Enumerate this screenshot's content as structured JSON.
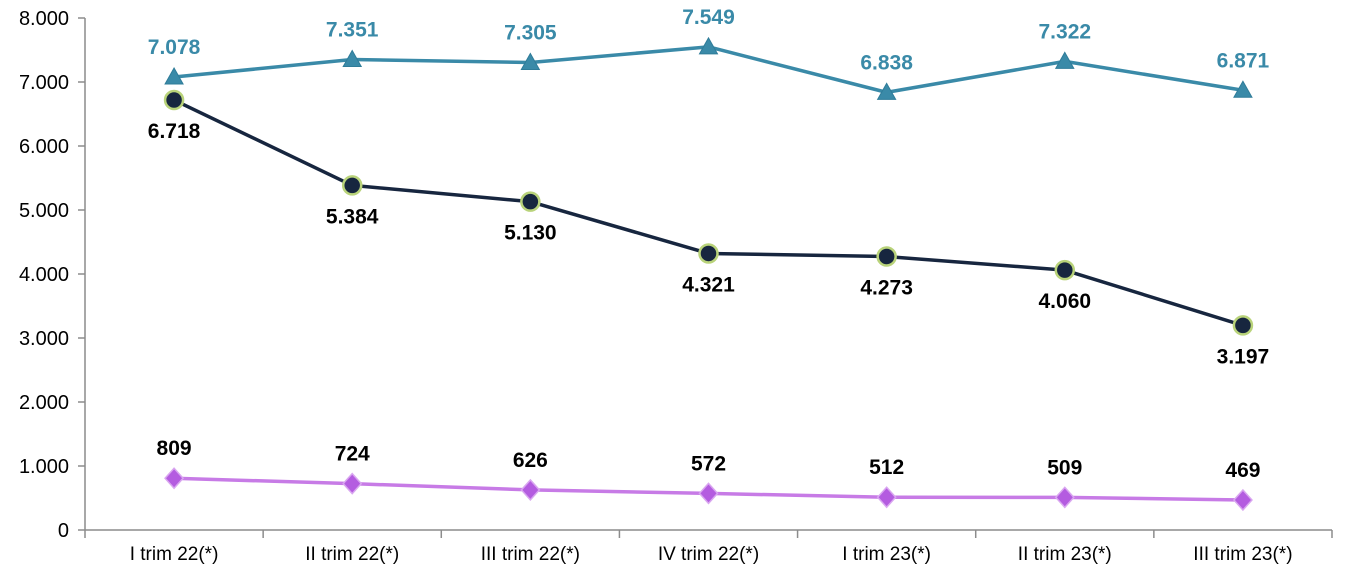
{
  "chart_data": {
    "type": "line",
    "title": "",
    "xlabel": "",
    "ylabel": "",
    "ylim": [
      0,
      8000
    ],
    "yticks": [
      {
        "value": 0,
        "label": "0"
      },
      {
        "value": 1000,
        "label": "1.000"
      },
      {
        "value": 2000,
        "label": "2.000"
      },
      {
        "value": 3000,
        "label": "3.000"
      },
      {
        "value": 4000,
        "label": "4.000"
      },
      {
        "value": 5000,
        "label": "5.000"
      },
      {
        "value": 6000,
        "label": "6.000"
      },
      {
        "value": 7000,
        "label": "7.000"
      },
      {
        "value": 8000,
        "label": "8.000"
      }
    ],
    "grid": false,
    "legend": "none",
    "categories": [
      "I trim 22(*)",
      "II trim 22(*)",
      "III trim 22(*)",
      "IV trim 22(*)",
      "I trim 23(*)",
      "II trim 23(*)",
      "III trim 23(*)"
    ],
    "series": [
      {
        "marker": "triangle",
        "color": "#3a8aa8",
        "label_color": "#3a8aa8",
        "label_position": "above",
        "values": [
          7078,
          7351,
          7305,
          7549,
          6838,
          7322,
          6871
        ],
        "labels": [
          "7.078",
          "7.351",
          "7.305",
          "7.549",
          "6.838",
          "7.322",
          "6.871"
        ]
      },
      {
        "marker": "circle",
        "color": "#17263f",
        "marker_edge": "#b9d37a",
        "label_color": "#000000",
        "label_position": "below",
        "values": [
          6718,
          5384,
          5130,
          4321,
          4273,
          4060,
          3197
        ],
        "labels": [
          "6.718",
          "5.384",
          "5.130",
          "4.321",
          "4.273",
          "4.060",
          "3.197"
        ]
      },
      {
        "marker": "diamond",
        "color": "#c77be6",
        "marker_fill": "#b45ce0",
        "label_color": "#000000",
        "label_position": "above",
        "values": [
          809,
          724,
          626,
          572,
          512,
          509,
          469
        ],
        "labels": [
          "809",
          "724",
          "626",
          "572",
          "512",
          "509",
          "469"
        ]
      }
    ]
  }
}
